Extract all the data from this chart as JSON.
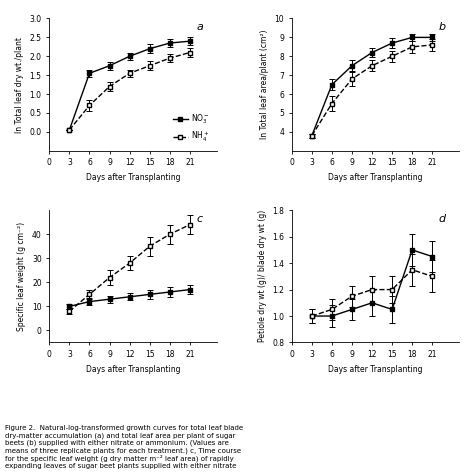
{
  "days": [
    3,
    6,
    9,
    12,
    15,
    18,
    21
  ],
  "panel_a": {
    "label": "a",
    "ylabel": "ln Total leaf dry wt./plant",
    "xlabel": "Days after Transplanting",
    "no3": [
      0.05,
      1.55,
      1.75,
      2.0,
      2.2,
      2.35,
      2.4
    ],
    "nh4": [
      0.05,
      0.7,
      1.2,
      1.55,
      1.75,
      1.95,
      2.1
    ],
    "ylim": [
      -0.5,
      3.0
    ],
    "yticks": [
      0.0,
      0.5,
      1.0,
      1.5,
      2.0,
      2.5,
      3.0
    ]
  },
  "panel_b": {
    "label": "b",
    "ylabel": "ln Total leaf area/plant (cm²)",
    "xlabel": "Days after Transplanting",
    "no3": [
      3.8,
      6.5,
      7.5,
      8.2,
      8.7,
      9.0,
      9.0
    ],
    "nh4": [
      3.8,
      5.5,
      6.8,
      7.5,
      8.0,
      8.5,
      8.6
    ],
    "ylim": [
      3.0,
      10.0
    ],
    "yticks": [
      4,
      5,
      6,
      7,
      8,
      9,
      10
    ]
  },
  "panel_c": {
    "label": "c",
    "ylabel": "Specific leaf weight (g cm⁻²)",
    "xlabel": "Days after Transplanting",
    "no3": [
      10,
      12,
      13,
      14,
      15,
      16,
      17
    ],
    "nh4": [
      8,
      15,
      22,
      28,
      35,
      40,
      44
    ],
    "ylim": [
      -5,
      50
    ],
    "yticks": [
      0,
      10,
      20,
      30,
      40
    ]
  },
  "panel_d": {
    "label": "d",
    "ylabel": "Petiole dry wt (g)/ blade dry wt (g)",
    "xlabel": "Days after Transplanting",
    "no3": [
      1.0,
      1.0,
      1.05,
      1.1,
      1.05,
      1.5,
      1.45
    ],
    "nh4": [
      1.0,
      1.05,
      1.15,
      1.2,
      1.2,
      1.35,
      1.3
    ],
    "ylim": [
      0.8,
      1.8
    ],
    "yticks": [
      0.8,
      1.0,
      1.2,
      1.4,
      1.6,
      1.8
    ]
  },
  "no3_label": "NO$_3^-$",
  "nh4_label": "NH$_4^+$",
  "figure_label_fontsize": 8,
  "axis_fontsize": 6,
  "tick_fontsize": 6
}
